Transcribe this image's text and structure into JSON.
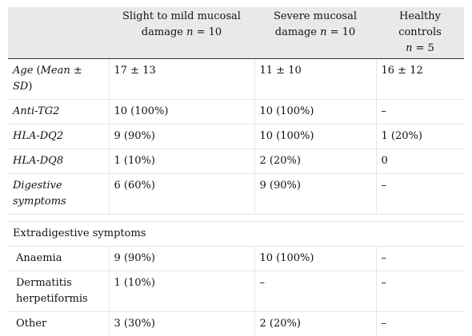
{
  "columns": {
    "c1_line1": "Slight to mild mucosal",
    "c1_line2_pre": "damage ",
    "c1_n": "n",
    "c1_line2_post": " = 10",
    "c2_line1": "Severe mucosal",
    "c2_line2_pre": "damage ",
    "c2_n": "n",
    "c2_line2_post": " = 10",
    "c3_line1": "Healthy controls",
    "c3_n": "n",
    "c3_line2_post": " = 5"
  },
  "rows": {
    "age": {
      "label_a": "Age",
      "label_b": " (",
      "label_c": "Mean ±",
      "label_d": "SD",
      "label_e": ")",
      "v1": "17 ± 13",
      "v2": "11 ± 10",
      "v3": "16 ± 12"
    },
    "antitg2": {
      "label": "Anti-TG2",
      "v1": "10 (100%)",
      "v2": "10 (100%)",
      "v3": "–"
    },
    "dq2": {
      "label": "HLA-DQ2",
      "v1": "9 (90%)",
      "v2": "10 (100%)",
      "v3": "1 (20%)"
    },
    "dq8": {
      "label": "HLA-DQ8",
      "v1": "1 (10%)",
      "v2": "2 (20%)",
      "v3": "0"
    },
    "digestive": {
      "label": "Digestive symptoms",
      "v1": "6 (60%)",
      "v2": "9 (90%)",
      "v3": "–"
    }
  },
  "extradigestive": {
    "section_label": "Extradigestive symptoms",
    "anaemia": {
      "label": "Anaemia",
      "v1": "9 (90%)",
      "v2": "10 (100%)",
      "v3": "–"
    },
    "dermatitis": {
      "label": "Dermatitis herpetiformis",
      "v1": "1 (10%)",
      "v2": "–",
      "v3": "–"
    },
    "other": {
      "label": "Other",
      "v1": "3 (30%)",
      "v2": "2 (20%)",
      "v3": "–"
    }
  }
}
